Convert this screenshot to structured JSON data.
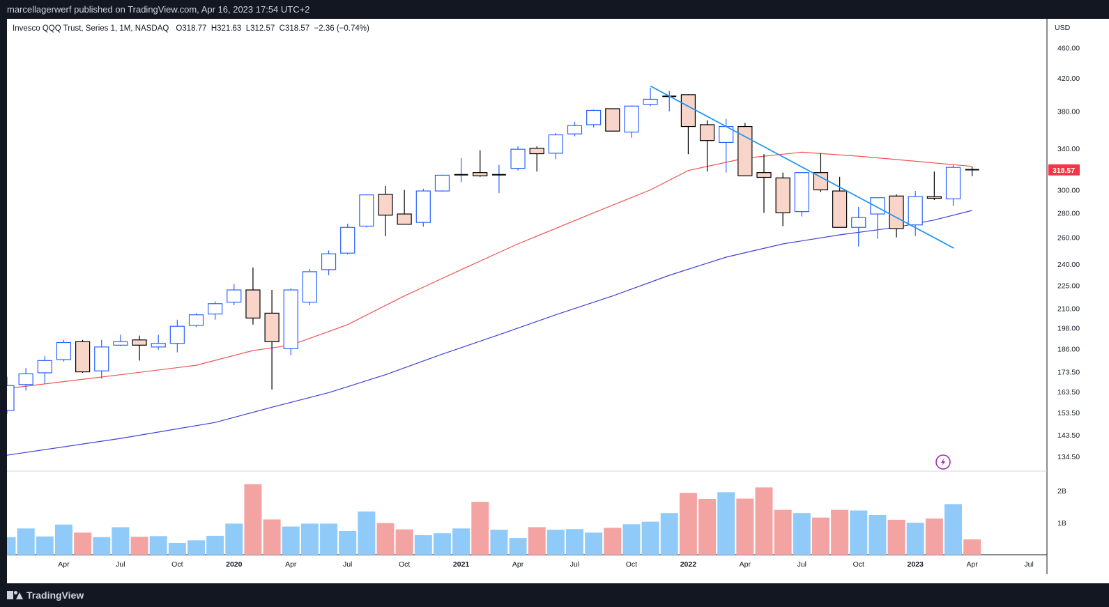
{
  "header": {
    "published": "marcellagerwerf published on TradingView.com, Apr 16, 2023 17:54 UTC+2"
  },
  "legend": {
    "symbol": "Invesco QQQ Trust, Series 1, 1M, NASDAQ",
    "ohlc": "O318.77  H321.63  L312.57  C318.57  −2.36 (−0.74%)"
  },
  "price_axis": {
    "currency": "USD",
    "last_price_label": "318.57",
    "last_price_color": "#f23645"
  },
  "footer": {
    "brand": "TradingView"
  },
  "colors": {
    "up_body_border": "#2962ff",
    "down_body_fill": "#f8d5c8",
    "down_body_border": "#000000",
    "ma_red": "#ef5350",
    "ma_blue": "#3f3fd9",
    "trendline": "#2196f3",
    "vol_up": "#90caf9",
    "vol_down": "#f4a3a3"
  },
  "chart_data": {
    "type": "candlestick",
    "title": "Invesco QQQ Trust, Series 1, 1M, NASDAQ",
    "y_scale": "log",
    "y_ticks": [
      460,
      420,
      380,
      340,
      300,
      280,
      260,
      240,
      225,
      210,
      198,
      186,
      173.5,
      163.5,
      153.5,
      143.5,
      134.5
    ],
    "y_tick_labels": [
      "460.00",
      "420.00",
      "380.00",
      "340.00",
      "300.00",
      "280.00",
      "260.00",
      "240.00",
      "225.00",
      "210.00",
      "198.00",
      "186.00",
      "173.50",
      "163.50",
      "153.50",
      "143.50",
      "134.50"
    ],
    "volume_ticks": [
      2,
      1
    ],
    "volume_tick_labels": [
      "2B",
      "1B"
    ],
    "x_tick_labels": [
      {
        "date": "2019-04",
        "label": "Apr",
        "bold": false
      },
      {
        "date": "2019-07",
        "label": "Jul",
        "bold": false
      },
      {
        "date": "2019-10",
        "label": "Oct",
        "bold": false
      },
      {
        "date": "2020-01",
        "label": "2020",
        "bold": true
      },
      {
        "date": "2020-04",
        "label": "Apr",
        "bold": false
      },
      {
        "date": "2020-07",
        "label": "Jul",
        "bold": false
      },
      {
        "date": "2020-10",
        "label": "Oct",
        "bold": false
      },
      {
        "date": "2021-01",
        "label": "2021",
        "bold": true
      },
      {
        "date": "2021-04",
        "label": "Apr",
        "bold": false
      },
      {
        "date": "2021-07",
        "label": "Jul",
        "bold": false
      },
      {
        "date": "2021-10",
        "label": "Oct",
        "bold": false
      },
      {
        "date": "2022-01",
        "label": "2022",
        "bold": true
      },
      {
        "date": "2022-04",
        "label": "Apr",
        "bold": false
      },
      {
        "date": "2022-07",
        "label": "Jul",
        "bold": false
      },
      {
        "date": "2022-10",
        "label": "Oct",
        "bold": false
      },
      {
        "date": "2023-01",
        "label": "2023",
        "bold": true
      },
      {
        "date": "2023-04",
        "label": "Apr",
        "bold": false
      },
      {
        "date": "2023-07",
        "label": "Jul",
        "bold": false
      }
    ],
    "x_range": [
      "2019-01",
      "2023-08"
    ],
    "candles": [
      {
        "date": "2019-01",
        "o": 154.5,
        "h": 171,
        "l": 153,
        "c": 166.5,
        "v": 0.55
      },
      {
        "date": "2019-02",
        "o": 167,
        "h": 175.5,
        "l": 164,
        "c": 172.5,
        "v": 0.82
      },
      {
        "date": "2019-03",
        "o": 173,
        "h": 182,
        "l": 167.5,
        "c": 179.5,
        "v": 0.57
      },
      {
        "date": "2019-04",
        "o": 180,
        "h": 191,
        "l": 179,
        "c": 189.5,
        "v": 0.94
      },
      {
        "date": "2019-05",
        "o": 190,
        "h": 191,
        "l": 173,
        "c": 173.5,
        "v": 0.69
      },
      {
        "date": "2019-06",
        "o": 174,
        "h": 191,
        "l": 170,
        "c": 187,
        "v": 0.55
      },
      {
        "date": "2019-07",
        "o": 188,
        "h": 194,
        "l": 187.5,
        "c": 190,
        "v": 0.86
      },
      {
        "date": "2019-08",
        "o": 191,
        "h": 193.5,
        "l": 179.5,
        "c": 188,
        "v": 0.56
      },
      {
        "date": "2019-09",
        "o": 187,
        "h": 194,
        "l": 185.5,
        "c": 189,
        "v": 0.58
      },
      {
        "date": "2019-10",
        "o": 189,
        "h": 203,
        "l": 184,
        "c": 199,
        "v": 0.37
      },
      {
        "date": "2019-11",
        "o": 199.5,
        "h": 207,
        "l": 198.5,
        "c": 206,
        "v": 0.45
      },
      {
        "date": "2019-12",
        "o": 206.5,
        "h": 214.5,
        "l": 203,
        "c": 213,
        "v": 0.59
      },
      {
        "date": "2020-01",
        "o": 214,
        "h": 226,
        "l": 212,
        "c": 222,
        "v": 0.97
      },
      {
        "date": "2020-02",
        "o": 222,
        "h": 237.5,
        "l": 200,
        "c": 204,
        "v": 2.2
      },
      {
        "date": "2020-03",
        "o": 207,
        "h": 222,
        "l": 164.5,
        "c": 190,
        "v": 1.1
      },
      {
        "date": "2020-04",
        "o": 186,
        "h": 223,
        "l": 182.5,
        "c": 222,
        "v": 0.88
      },
      {
        "date": "2020-05",
        "o": 214,
        "h": 236.5,
        "l": 212,
        "c": 234.5,
        "v": 0.97
      },
      {
        "date": "2020-06",
        "o": 236,
        "h": 250,
        "l": 232,
        "c": 247.5,
        "v": 0.97
      },
      {
        "date": "2020-07",
        "o": 248,
        "h": 271,
        "l": 247,
        "c": 268,
        "v": 0.74
      },
      {
        "date": "2020-08",
        "o": 269,
        "h": 296,
        "l": 268,
        "c": 295.5,
        "v": 1.35
      },
      {
        "date": "2020-09",
        "o": 296,
        "h": 303.5,
        "l": 261,
        "c": 278,
        "v": 0.99
      },
      {
        "date": "2020-10",
        "o": 279,
        "h": 300,
        "l": 270.5,
        "c": 270.5,
        "v": 0.79
      },
      {
        "date": "2020-11",
        "o": 272,
        "h": 301,
        "l": 268.5,
        "c": 299,
        "v": 0.61
      },
      {
        "date": "2020-12",
        "o": 299,
        "h": 314,
        "l": 298.5,
        "c": 313.5,
        "v": 0.67
      },
      {
        "date": "2021-01",
        "o": 314,
        "h": 330,
        "l": 307,
        "c": 314,
        "v": 0.82
      },
      {
        "date": "2021-02",
        "o": 316,
        "h": 338,
        "l": 312,
        "c": 313,
        "v": 1.65
      },
      {
        "date": "2021-03",
        "o": 314,
        "h": 323.5,
        "l": 297,
        "c": 314,
        "v": 0.78
      },
      {
        "date": "2021-04",
        "o": 320,
        "h": 342,
        "l": 318,
        "c": 339,
        "v": 0.52
      },
      {
        "date": "2021-05",
        "o": 340,
        "h": 342,
        "l": 317,
        "c": 334.5,
        "v": 0.86
      },
      {
        "date": "2021-06",
        "o": 335,
        "h": 356,
        "l": 329,
        "c": 354,
        "v": 0.78
      },
      {
        "date": "2021-07",
        "o": 355,
        "h": 368,
        "l": 352.5,
        "c": 364,
        "v": 0.8
      },
      {
        "date": "2021-08",
        "o": 365,
        "h": 382,
        "l": 362,
        "c": 381,
        "v": 0.69
      },
      {
        "date": "2021-09",
        "o": 383,
        "h": 383,
        "l": 358,
        "c": 358,
        "v": 0.84
      },
      {
        "date": "2021-10",
        "o": 357,
        "h": 386,
        "l": 351,
        "c": 386,
        "v": 0.95
      },
      {
        "date": "2021-11",
        "o": 388,
        "h": 408,
        "l": 386,
        "c": 394,
        "v": 1.03
      },
      {
        "date": "2021-12",
        "o": 397,
        "h": 404,
        "l": 380,
        "c": 397.5,
        "v": 1.3
      },
      {
        "date": "2022-01",
        "o": 399.5,
        "h": 400,
        "l": 334,
        "c": 363,
        "v": 1.93
      },
      {
        "date": "2022-02",
        "o": 365,
        "h": 370,
        "l": 317,
        "c": 348,
        "v": 1.74
      },
      {
        "date": "2022-03",
        "o": 346,
        "h": 371.5,
        "l": 316,
        "c": 363,
        "v": 1.95
      },
      {
        "date": "2022-04",
        "o": 363,
        "h": 367,
        "l": 313,
        "c": 313,
        "v": 1.75
      },
      {
        "date": "2022-05",
        "o": 316,
        "h": 334,
        "l": 280,
        "c": 311.5,
        "v": 2.1
      },
      {
        "date": "2022-06",
        "o": 311,
        "h": 316,
        "l": 269,
        "c": 280,
        "v": 1.4
      },
      {
        "date": "2022-07",
        "o": 281,
        "h": 316,
        "l": 277,
        "c": 316,
        "v": 1.3
      },
      {
        "date": "2022-08",
        "o": 316,
        "h": 335,
        "l": 298,
        "c": 300,
        "v": 1.16
      },
      {
        "date": "2022-09",
        "o": 299,
        "h": 312,
        "l": 268,
        "c": 268,
        "v": 1.4
      },
      {
        "date": "2022-10",
        "o": 268,
        "h": 285,
        "l": 253,
        "c": 276,
        "v": 1.38
      },
      {
        "date": "2022-11",
        "o": 279,
        "h": 293,
        "l": 259,
        "c": 293,
        "v": 1.24
      },
      {
        "date": "2022-12",
        "o": 294.5,
        "h": 296,
        "l": 260,
        "c": 267,
        "v": 1.09
      },
      {
        "date": "2023-01",
        "o": 270,
        "h": 299,
        "l": 261,
        "c": 294,
        "v": 1.0
      },
      {
        "date": "2023-02",
        "o": 294,
        "h": 317,
        "l": 291,
        "c": 292.5,
        "v": 1.13
      },
      {
        "date": "2023-03",
        "o": 292,
        "h": 323,
        "l": 286,
        "c": 321,
        "v": 1.58
      },
      {
        "date": "2023-04",
        "o": 318.77,
        "h": 321.63,
        "l": 312.57,
        "c": 318.57,
        "v": 0.48
      }
    ],
    "ma_red": [
      [
        "2019-01",
        165
      ],
      [
        "2019-07",
        172
      ],
      [
        "2019-11",
        177
      ],
      [
        "2020-02",
        185
      ],
      [
        "2020-04",
        188
      ],
      [
        "2020-07",
        200
      ],
      [
        "2020-10",
        218
      ],
      [
        "2021-01",
        236
      ],
      [
        "2021-04",
        255
      ],
      [
        "2021-08",
        280
      ],
      [
        "2021-11",
        300
      ],
      [
        "2022-01",
        318
      ],
      [
        "2022-04",
        330
      ],
      [
        "2022-07",
        336
      ],
      [
        "2022-10",
        332
      ],
      [
        "2023-01",
        327
      ],
      [
        "2023-04",
        322
      ]
    ],
    "ma_blue": [
      [
        "2019-01",
        135
      ],
      [
        "2019-07",
        142
      ],
      [
        "2019-12",
        149
      ],
      [
        "2020-03",
        156
      ],
      [
        "2020-06",
        163
      ],
      [
        "2020-09",
        172
      ],
      [
        "2020-12",
        183
      ],
      [
        "2021-03",
        194
      ],
      [
        "2021-06",
        206
      ],
      [
        "2021-09",
        218
      ],
      [
        "2021-12",
        232
      ],
      [
        "2022-03",
        245
      ],
      [
        "2022-06",
        255
      ],
      [
        "2022-09",
        262
      ],
      [
        "2022-12",
        268
      ],
      [
        "2023-02",
        274
      ],
      [
        "2023-04",
        282
      ]
    ],
    "trendline": [
      [
        "2021-11",
        410
      ],
      [
        "2023-02",
        267
      ]
    ]
  }
}
